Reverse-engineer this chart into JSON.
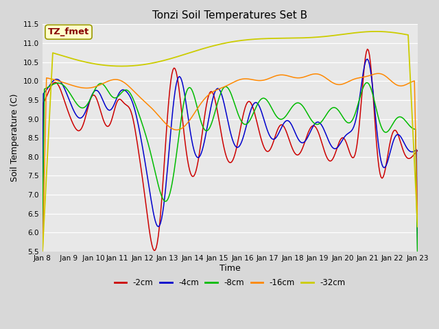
{
  "title": "Tonzi Soil Temperatures Set B",
  "xlabel": "Time",
  "ylabel": "Soil Temperature (C)",
  "annotation": "TZ_fmet",
  "ylim": [
    5.5,
    11.5
  ],
  "yticks": [
    5.5,
    6.0,
    6.5,
    7.0,
    7.5,
    8.0,
    8.5,
    9.0,
    9.5,
    10.0,
    10.5,
    11.0,
    11.5
  ],
  "xtick_labels": [
    "Jan 8",
    " Jan 9",
    " Jan 10",
    "Jan 11",
    "Jan 12",
    "Jan 13",
    "Jan 14",
    "Jan 15",
    "Jan 16",
    "Jan 17",
    "Jan 18",
    "Jan 19",
    "Jan 20",
    "Jan 21",
    "Jan 22",
    "Jan 23"
  ],
  "series_colors": [
    "#cc0000",
    "#0000cc",
    "#00bb00",
    "#ff8800",
    "#cccc00"
  ],
  "series_labels": [
    "-2cm",
    "-4cm",
    "-8cm",
    "-16cm",
    "-32cm"
  ],
  "bg_color": "#e8e8e8",
  "grid_color": "#ffffff",
  "annotation_bg": "#ffffcc",
  "annotation_border": "#999900",
  "annotation_text_color": "#880000",
  "fig_bg": "#d8d8d8"
}
